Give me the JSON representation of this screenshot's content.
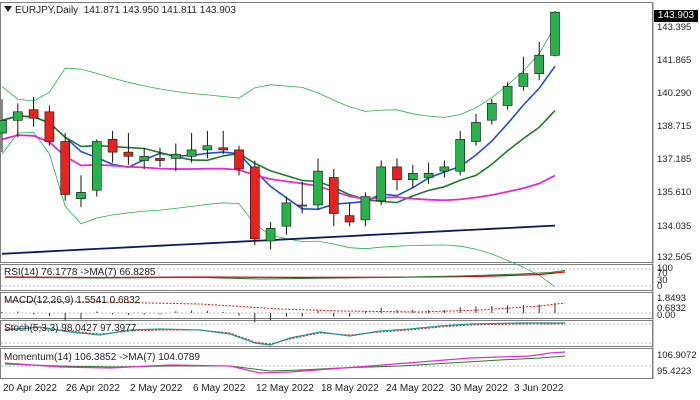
{
  "header": {
    "symbol": "EURJPY,Daily",
    "ohlc": "141.871 143.950 141.811 143.903",
    "last_price": "143.903"
  },
  "colors": {
    "bull": "#27b34a",
    "bear": "#e8231e",
    "ma_fast": "#1f4fd6",
    "ma_mid": "#1d7a2e",
    "ma_slow": "#e62ad1",
    "ma_long": "#0c1a6a",
    "bollinger": "#27b34a"
  },
  "price_axis": {
    "labels": [
      "143.395",
      "141.865",
      "140.290",
      "138.715",
      "137.185",
      "135.610",
      "134.035",
      "132.505"
    ]
  },
  "time_axis": {
    "labels": [
      "20 Apr 2022",
      "26 Apr 2022",
      "2 May 2022",
      "6 May 2022",
      "12 May 2022",
      "18 May 2022",
      "24 May 2022",
      "30 May 2022",
      "3 Jun 2022"
    ]
  },
  "indicators": {
    "rsi": {
      "title": "RSI(14) 76.1778 ->MA(7) 66.8285",
      "labels": [
        "100",
        "70",
        "30",
        "0"
      ]
    },
    "macd": {
      "title": "MACD(12,26,9) 1.5541 0.6832",
      "labels": [
        "1.8493",
        "0.6832",
        "0.00"
      ]
    },
    "stoch": {
      "title": "Stoch(5,3,3) 98.0427 97.3977",
      "labels": []
    },
    "momentum": {
      "title": "Momentum(14) 106.3852 ->MA(7) 104.0789",
      "labels": [
        "106.9072",
        "95.4223"
      ]
    }
  },
  "chart_data": {
    "type": "candlestick",
    "title": "EURJPY,Daily",
    "x": [
      "19 Apr",
      "20 Apr",
      "21 Apr",
      "22 Apr",
      "25 Apr",
      "26 Apr",
      "27 Apr",
      "28 Apr",
      "29 Apr",
      "2 May",
      "3 May",
      "4 May",
      "5 May",
      "6 May",
      "9 May",
      "10 May",
      "11 May",
      "12 May",
      "13 May",
      "16 May",
      "17 May",
      "18 May",
      "19 May",
      "20 May",
      "23 May",
      "24 May",
      "25 May",
      "26 May",
      "27 May",
      "30 May",
      "31 May",
      "1 Jun",
      "2 Jun",
      "3 Jun",
      "6 Jun",
      "7 Jun"
    ],
    "open": [
      138.2,
      138.8,
      139.3,
      139.2,
      137.8,
      135.1,
      135.5,
      137.9,
      137.3,
      136.9,
      137.0,
      137.0,
      137.1,
      137.4,
      137.5,
      137.4,
      136.6,
      133.1,
      133.8,
      134.8,
      134.8,
      136.1,
      134.3,
      134.1,
      135.0,
      136.6,
      136.0,
      136.1,
      136.4,
      136.4,
      137.8,
      138.8,
      139.5,
      140.4,
      141.0,
      141.871
    ],
    "high": [
      139.8,
      139.6,
      139.9,
      139.5,
      138.2,
      136.2,
      137.9,
      138.3,
      138.2,
      137.5,
      137.5,
      137.7,
      138.2,
      138.3,
      138.3,
      137.6,
      136.9,
      134.0,
      135.2,
      135.9,
      137.0,
      136.5,
      134.9,
      135.4,
      136.9,
      137.0,
      136.7,
      136.8,
      136.9,
      138.3,
      139.1,
      139.8,
      140.6,
      141.8,
      142.5,
      143.95
    ],
    "high_note": "",
    "low": [
      137.3,
      138.0,
      138.5,
      137.6,
      135.0,
      134.7,
      135.2,
      136.8,
      136.7,
      136.5,
      136.6,
      136.4,
      136.8,
      137.0,
      137.2,
      136.2,
      132.9,
      132.7,
      133.4,
      134.4,
      134.6,
      133.8,
      133.8,
      133.8,
      134.8,
      135.5,
      135.6,
      135.8,
      136.1,
      136.2,
      137.6,
      138.6,
      139.3,
      140.2,
      140.7,
      141.811
    ],
    "close": [
      138.8,
      139.2,
      138.9,
      137.8,
      135.3,
      135.4,
      137.8,
      137.3,
      137.1,
      137.1,
      136.9,
      137.2,
      137.4,
      137.6,
      137.4,
      136.5,
      133.2,
      133.7,
      134.9,
      134.8,
      136.4,
      134.4,
      134.0,
      135.2,
      136.6,
      136.0,
      136.3,
      136.3,
      136.6,
      137.9,
      138.7,
      139.6,
      140.4,
      141.0,
      141.871,
      143.903
    ],
    "ylim": [
      132.3,
      144.1
    ],
    "yticks": [
      143.395,
      141.865,
      140.29,
      138.715,
      137.185,
      135.61,
      134.035,
      132.505
    ]
  }
}
